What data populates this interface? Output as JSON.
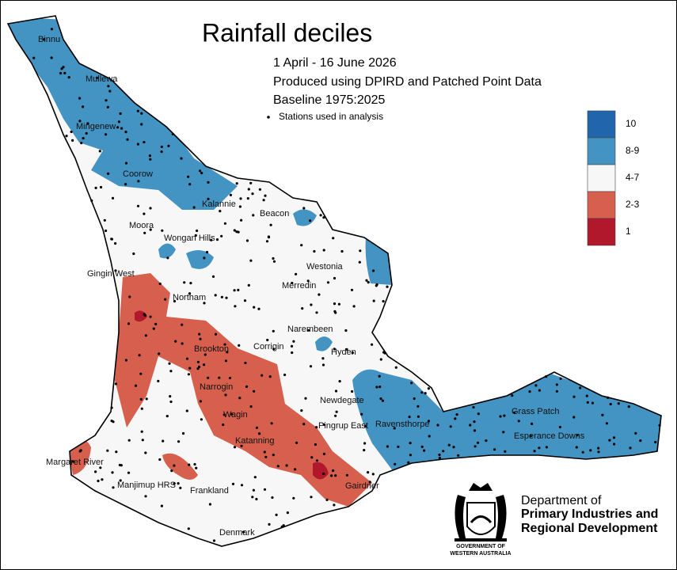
{
  "map": {
    "title": "Rainfall deciles",
    "subtitle": [
      "1 April - 16 June 2026",
      "Produced using DPIRD and Patched Point Data",
      "Baseline 1975:2025"
    ],
    "stations_label": "Stations used in analysis",
    "legend": [
      {
        "label": "10",
        "color": "#2166ac"
      },
      {
        "label": "8-9",
        "color": "#4393c3"
      },
      {
        "label": "4-7",
        "color": "#f7f7f7"
      },
      {
        "label": "2-3",
        "color": "#d6604d"
      },
      {
        "label": "1",
        "color": "#b2182b"
      }
    ],
    "towns": [
      "Binnu",
      "Mullewa",
      "Mingenew",
      "Coorow",
      "Moora",
      "Kalannie",
      "Beacon",
      "Wongan Hills",
      "Gingin West",
      "Westonia",
      "Merredin",
      "Northam",
      "Narembeen",
      "Hyden",
      "Brookton",
      "Corrigin",
      "Newdegate",
      "Narrogin",
      "Wagin",
      "Pingrup East",
      "Ravensthorpe",
      "Grass Patch",
      "Esperance Downs",
      "Katanning",
      "Margaret River",
      "Manjimup HRS",
      "Frankland",
      "Gairdner",
      "Denmark"
    ]
  },
  "footer": {
    "department": [
      "Department of",
      "Primary Industries and",
      "Regional Development"
    ],
    "government": [
      "GOVERNMENT OF",
      "WESTERN AUSTRALIA"
    ]
  }
}
